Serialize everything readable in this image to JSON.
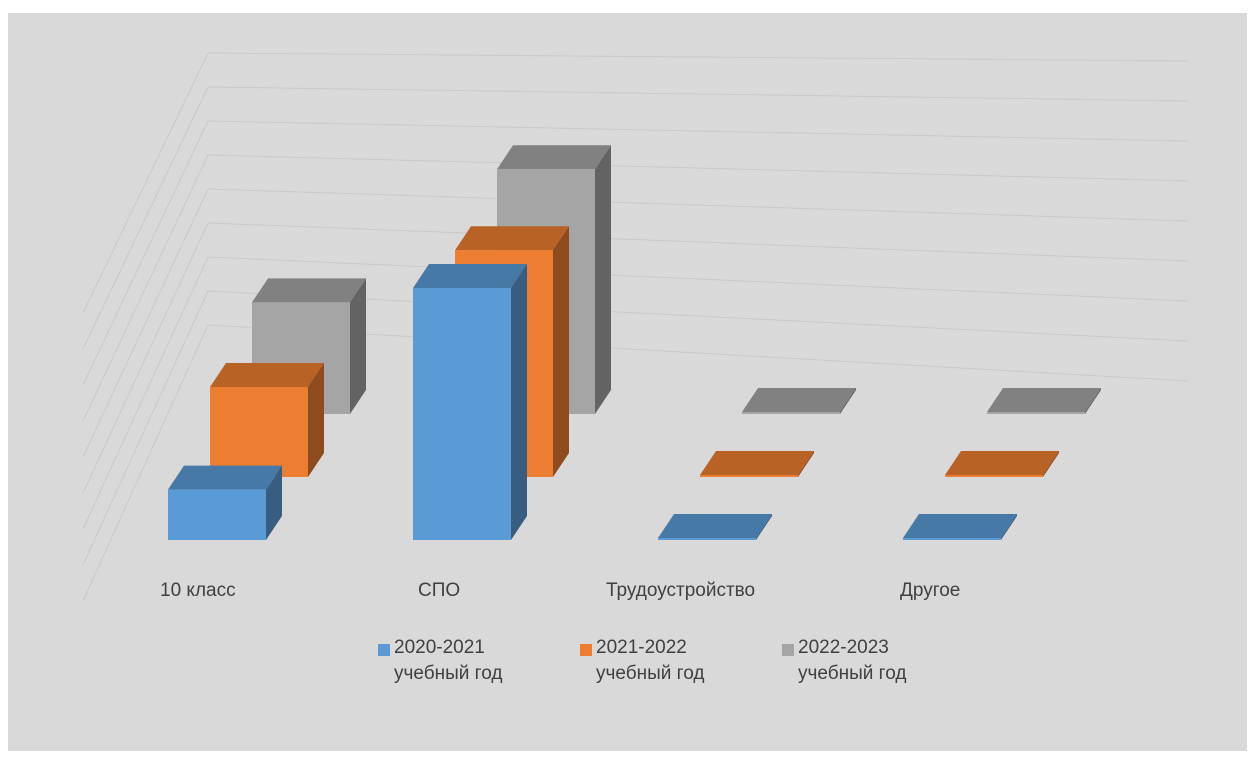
{
  "chart_data": {
    "type": "bar",
    "style": "3d-clustered-depth",
    "categories": [
      "10 класс",
      "СПО",
      "Трудоустройство",
      "Другое"
    ],
    "series": [
      {
        "name": "2020-2021 учебный год",
        "color": "#5b9bd5",
        "values": [
          7,
          35,
          0,
          0
        ]
      },
      {
        "name": "2021-2022 учебный год",
        "color": "#ed7d31",
        "values": [
          12.5,
          31.5,
          0,
          0
        ]
      },
      {
        "name": "2022-2023 учебный год",
        "color": "#a5a5a5",
        "values": [
          15.5,
          34,
          0,
          0
        ]
      }
    ],
    "ylim": [
      0,
      45
    ],
    "grid": true,
    "legend_position": "bottom"
  }
}
